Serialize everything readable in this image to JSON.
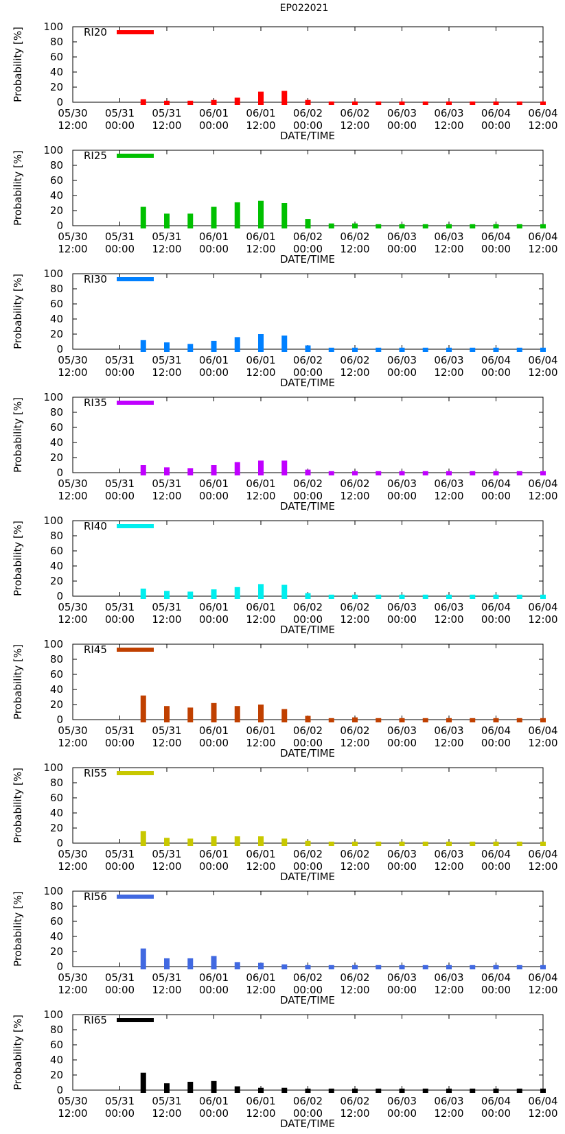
{
  "title": "EP022021",
  "chart_data": [
    {
      "type": "bar",
      "legend": "RI20",
      "color": "#ff0000",
      "ylabel": "Probability [%]",
      "xlabel": "DATE/TIME",
      "ylim": [
        0,
        100
      ],
      "yticks": [
        "0",
        "20",
        "40",
        "60",
        "80",
        "100"
      ],
      "xticks": [
        "05/30 12:00",
        "05/31 00:00",
        "05/31 12:00",
        "06/01 00:00",
        "06/01 12:00",
        "06/02 00:00",
        "06/02 12:00",
        "06/03 00:00",
        "06/03 12:00",
        "06/04 00:00",
        "06/04 12:00"
      ],
      "x_hours": [
        18,
        24,
        30,
        36,
        42,
        48,
        54,
        60,
        66,
        72,
        78,
        84,
        90,
        96,
        102,
        108,
        114,
        120
      ],
      "values": [
        4,
        2,
        2,
        3,
        6,
        14,
        15,
        3,
        1,
        1,
        1,
        1,
        1,
        1,
        1,
        1,
        1,
        1
      ]
    },
    {
      "type": "bar",
      "legend": "RI25",
      "color": "#00c000",
      "ylabel": "Probability [%]",
      "xlabel": "DATE/TIME",
      "ylim": [
        0,
        100
      ],
      "yticks": [
        "0",
        "20",
        "40",
        "60",
        "80",
        "100"
      ],
      "xticks": [
        "05/30 12:00",
        "05/31 00:00",
        "05/31 12:00",
        "06/01 00:00",
        "06/01 12:00",
        "06/02 00:00",
        "06/02 12:00",
        "06/03 00:00",
        "06/03 12:00",
        "06/04 00:00",
        "06/04 12:00"
      ],
      "x_hours": [
        18,
        24,
        30,
        36,
        42,
        48,
        54,
        60,
        66,
        72,
        78,
        84,
        90,
        96,
        102,
        108,
        114,
        120
      ],
      "values": [
        25,
        16,
        16,
        25,
        31,
        33,
        30,
        9,
        3,
        3,
        2,
        2,
        2,
        2,
        2,
        2,
        2,
        2
      ]
    },
    {
      "type": "bar",
      "legend": "RI30",
      "color": "#0080ff",
      "ylabel": "Probability [%]",
      "xlabel": "DATE/TIME",
      "ylim": [
        0,
        100
      ],
      "yticks": [
        "0",
        "20",
        "40",
        "60",
        "80",
        "100"
      ],
      "xticks": [
        "05/30 12:00",
        "05/31 00:00",
        "05/31 12:00",
        "06/01 00:00",
        "06/01 12:00",
        "06/02 00:00",
        "06/02 12:00",
        "06/03 00:00",
        "06/03 12:00",
        "06/04 00:00",
        "06/04 12:00"
      ],
      "x_hours": [
        18,
        24,
        30,
        36,
        42,
        48,
        54,
        60,
        66,
        72,
        78,
        84,
        90,
        96,
        102,
        108,
        114,
        120
      ],
      "values": [
        12,
        9,
        7,
        11,
        16,
        20,
        18,
        5,
        2,
        2,
        2,
        2,
        2,
        2,
        2,
        2,
        2,
        2
      ]
    },
    {
      "type": "bar",
      "legend": "RI35",
      "color": "#c000ff",
      "ylabel": "Probability [%]",
      "xlabel": "DATE/TIME",
      "ylim": [
        0,
        100
      ],
      "yticks": [
        "0",
        "20",
        "40",
        "60",
        "80",
        "100"
      ],
      "xticks": [
        "05/30 12:00",
        "05/31 00:00",
        "05/31 12:00",
        "06/01 00:00",
        "06/01 12:00",
        "06/02 00:00",
        "06/02 12:00",
        "06/03 00:00",
        "06/03 12:00",
        "06/04 00:00",
        "06/04 12:00"
      ],
      "x_hours": [
        18,
        24,
        30,
        36,
        42,
        48,
        54,
        60,
        66,
        72,
        78,
        84,
        90,
        96,
        102,
        108,
        114,
        120
      ],
      "values": [
        10,
        7,
        6,
        10,
        14,
        16,
        16,
        4,
        2,
        2,
        2,
        2,
        2,
        2,
        2,
        2,
        2,
        2
      ]
    },
    {
      "type": "bar",
      "legend": "RI40",
      "color": "#00eeee",
      "ylabel": "Probability [%]",
      "xlabel": "DATE/TIME",
      "ylim": [
        0,
        100
      ],
      "yticks": [
        "0",
        "20",
        "40",
        "60",
        "80",
        "100"
      ],
      "xticks": [
        "05/30 12:00",
        "05/31 00:00",
        "05/31 12:00",
        "06/01 00:00",
        "06/01 12:00",
        "06/02 00:00",
        "06/02 12:00",
        "06/03 00:00",
        "06/03 12:00",
        "06/04 00:00",
        "06/04 12:00"
      ],
      "x_hours": [
        18,
        24,
        30,
        36,
        42,
        48,
        54,
        60,
        66,
        72,
        78,
        84,
        90,
        96,
        102,
        108,
        114,
        120
      ],
      "values": [
        10,
        7,
        6,
        9,
        12,
        16,
        15,
        4,
        2,
        2,
        2,
        2,
        2,
        2,
        2,
        2,
        2,
        2
      ]
    },
    {
      "type": "bar",
      "legend": "RI45",
      "color": "#c04000",
      "ylabel": "Probability [%]",
      "xlabel": "DATE/TIME",
      "ylim": [
        0,
        100
      ],
      "yticks": [
        "0",
        "20",
        "40",
        "60",
        "80",
        "100"
      ],
      "xticks": [
        "05/30 12:00",
        "05/31 00:00",
        "05/31 12:00",
        "06/01 00:00",
        "06/01 12:00",
        "06/02 00:00",
        "06/02 12:00",
        "06/03 00:00",
        "06/03 12:00",
        "06/04 00:00",
        "06/04 12:00"
      ],
      "x_hours": [
        18,
        24,
        30,
        36,
        42,
        48,
        54,
        60,
        66,
        72,
        78,
        84,
        90,
        96,
        102,
        108,
        114,
        120
      ],
      "values": [
        32,
        18,
        16,
        22,
        18,
        20,
        14,
        5,
        2,
        3,
        2,
        2,
        2,
        2,
        2,
        2,
        2,
        2
      ]
    },
    {
      "type": "bar",
      "legend": "RI55",
      "color": "#c8c800",
      "ylabel": "Probability [%]",
      "xlabel": "DATE/TIME",
      "ylim": [
        0,
        100
      ],
      "yticks": [
        "0",
        "20",
        "40",
        "60",
        "80",
        "100"
      ],
      "xticks": [
        "05/30 12:00",
        "05/31 00:00",
        "05/31 12:00",
        "06/01 00:00",
        "06/01 12:00",
        "06/02 00:00",
        "06/02 12:00",
        "06/03 00:00",
        "06/03 12:00",
        "06/04 00:00",
        "06/04 12:00"
      ],
      "x_hours": [
        18,
        24,
        30,
        36,
        42,
        48,
        54,
        60,
        66,
        72,
        78,
        84,
        90,
        96,
        102,
        108,
        114,
        120
      ],
      "values": [
        16,
        7,
        6,
        9,
        9,
        9,
        6,
        3,
        2,
        2,
        2,
        2,
        2,
        2,
        2,
        2,
        2,
        2
      ]
    },
    {
      "type": "bar",
      "legend": "RI56",
      "color": "#4169e1",
      "ylabel": "Probability [%]",
      "xlabel": "DATE/TIME",
      "ylim": [
        0,
        100
      ],
      "yticks": [
        "0",
        "20",
        "40",
        "60",
        "80",
        "100"
      ],
      "xticks": [
        "05/30 12:00",
        "05/31 00:00",
        "05/31 12:00",
        "06/01 00:00",
        "06/01 12:00",
        "06/02 00:00",
        "06/02 12:00",
        "06/03 00:00",
        "06/03 12:00",
        "06/04 00:00",
        "06/04 12:00"
      ],
      "x_hours": [
        18,
        24,
        30,
        36,
        42,
        48,
        54,
        60,
        66,
        72,
        78,
        84,
        90,
        96,
        102,
        108,
        114,
        120
      ],
      "values": [
        24,
        11,
        11,
        14,
        6,
        5,
        3,
        2,
        2,
        2,
        2,
        2,
        2,
        2,
        2,
        2,
        2,
        2
      ]
    },
    {
      "type": "bar",
      "legend": "RI65",
      "color": "#000000",
      "ylabel": "Probability [%]",
      "xlabel": "DATE/TIME",
      "ylim": [
        0,
        100
      ],
      "yticks": [
        "0",
        "20",
        "40",
        "60",
        "80",
        "100"
      ],
      "xticks": [
        "05/30 12:00",
        "05/31 00:00",
        "05/31 12:00",
        "06/01 00:00",
        "06/01 12:00",
        "06/02 00:00",
        "06/02 12:00",
        "06/03 00:00",
        "06/03 12:00",
        "06/04 00:00",
        "06/04 12:00"
      ],
      "x_hours": [
        18,
        24,
        30,
        36,
        42,
        48,
        54,
        60,
        66,
        72,
        78,
        84,
        90,
        96,
        102,
        108,
        114,
        120
      ],
      "values": [
        23,
        9,
        11,
        12,
        5,
        3,
        3,
        2,
        2,
        2,
        2,
        2,
        2,
        2,
        2,
        2,
        2,
        2
      ]
    }
  ]
}
